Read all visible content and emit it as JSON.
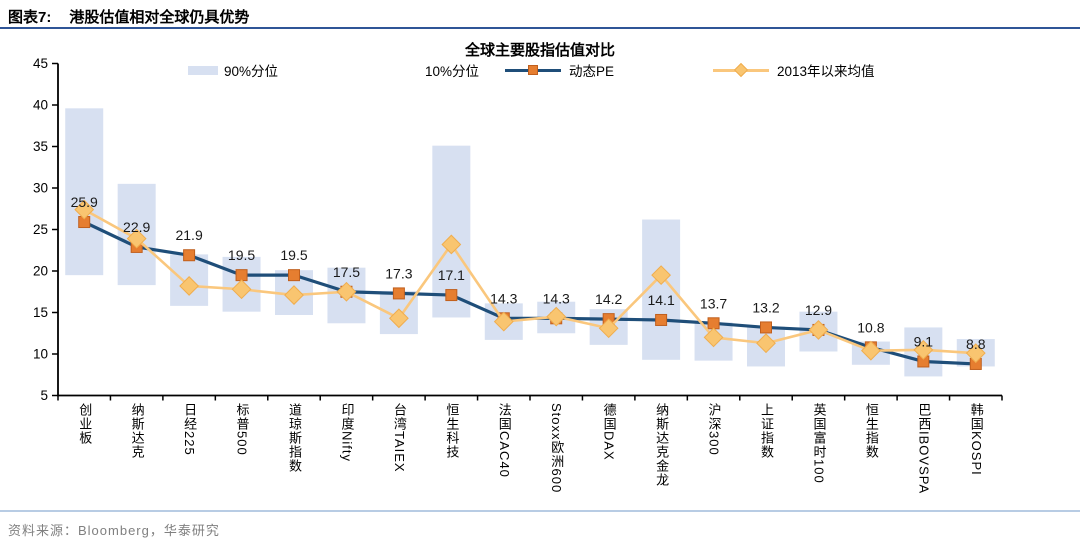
{
  "header": {
    "figure_label": "图表7:",
    "figure_title": "港股估值相对全球仍具优势"
  },
  "chart": {
    "title": "全球主要股指估值对比"
  },
  "legend": {
    "items": [
      {
        "label": "90%分位",
        "swatch": "bar"
      },
      {
        "label": "10%分位",
        "swatch": "none"
      },
      {
        "label": "动态PE",
        "swatch": "line-square"
      },
      {
        "label": "2013年以来均值",
        "swatch": "line-diamond"
      }
    ]
  },
  "colors": {
    "bar_fill": "#D7E0F1",
    "pe_line": "#1F4E79",
    "pe_marker": "#E67E30",
    "pe_marker_edge": "#C05F1D",
    "mean_line": "#FAC77D",
    "mean_marker": "#F9C570",
    "mean_marker_edge": "#F0AD4E",
    "axis": "#000000",
    "label_text": "#1a1a1a",
    "header_rule": "#2F5597",
    "footer_rule": "#B8CCE4"
  },
  "chart_data": {
    "type": "combo-range-bar-and-lines",
    "title": "全球主要股指估值对比",
    "categories": [
      "创业板",
      "纳斯达克",
      "日经225",
      "标普500",
      "道琼斯指数",
      "印度Nifty",
      "台湾TAIEX",
      "恒生科技",
      "法国CAC40",
      "Stoxx欧洲600",
      "德国DAX",
      "纳斯达克金龙",
      "沪深300",
      "上证指数",
      "英国富时100",
      "恒生指数",
      "巴西IBOVSPA",
      "韩国KOSPI"
    ],
    "series": [
      {
        "name": "90%分位",
        "type": "range-top",
        "values": [
          39.6,
          30.5,
          22.0,
          21.7,
          20.1,
          20.4,
          17.6,
          35.1,
          16.1,
          16.3,
          15.4,
          26.2,
          13.8,
          13.3,
          15.1,
          11.5,
          13.2,
          11.8
        ]
      },
      {
        "name": "10%分位",
        "type": "range-bottom",
        "values": [
          19.5,
          18.3,
          15.8,
          15.1,
          14.7,
          13.7,
          12.4,
          14.4,
          11.7,
          12.5,
          11.1,
          9.3,
          9.2,
          8.5,
          10.3,
          8.7,
          7.3,
          8.5
        ]
      },
      {
        "name": "动态PE",
        "type": "line",
        "show_labels": true,
        "values": [
          25.9,
          22.9,
          21.9,
          19.5,
          19.5,
          17.5,
          17.3,
          17.1,
          14.3,
          14.3,
          14.2,
          14.1,
          13.7,
          13.2,
          12.9,
          10.8,
          9.1,
          8.8
        ]
      },
      {
        "name": "2013年以来均值",
        "type": "line",
        "show_labels": false,
        "values": [
          27.4,
          23.9,
          18.2,
          17.8,
          17.1,
          17.5,
          14.3,
          23.2,
          13.9,
          14.5,
          13.1,
          19.5,
          12.0,
          11.3,
          12.9,
          10.4,
          10.5,
          10.1
        ]
      }
    ],
    "ylim": [
      5,
      45
    ],
    "ytick_step": 5,
    "yticks": [
      5,
      10,
      15,
      20,
      25,
      30,
      35,
      40,
      45
    ],
    "grid": false,
    "legend_position": "top"
  },
  "footer": {
    "source": "资料来源：Bloomberg，华泰研究"
  }
}
